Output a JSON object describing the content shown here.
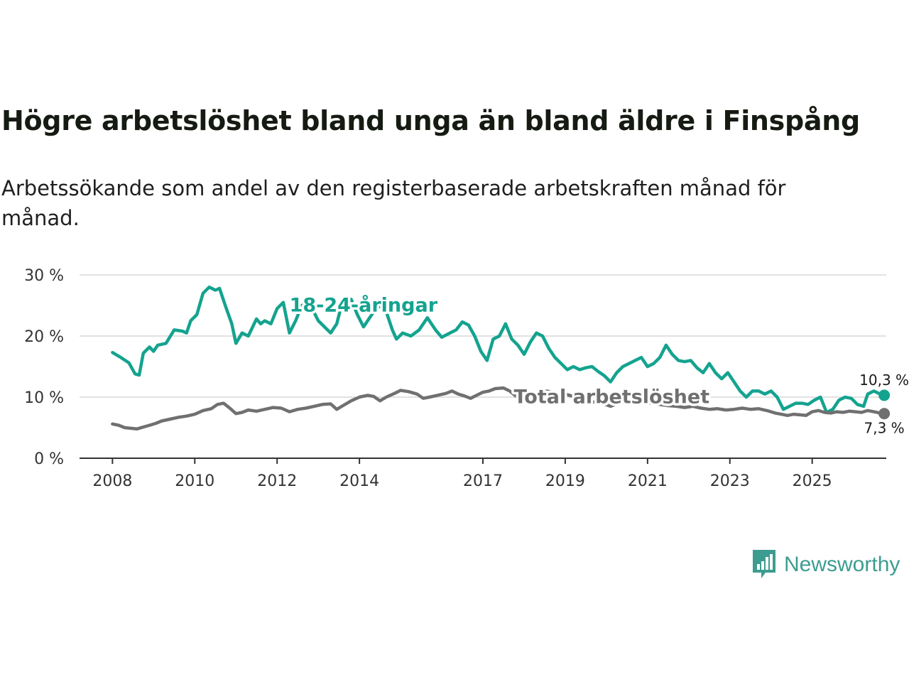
{
  "title": "Högre arbetslöshet bland unga än bland äldre i Finspång",
  "subtitle": "Arbetssökande som andel av den registerbaserade arbetskraften månad för månad.",
  "logo_text": "Newsworthy",
  "colors": {
    "youth": "#14a38f",
    "total": "#707070",
    "grid": "#d9d9d9",
    "axis": "#333333"
  },
  "chart_data": {
    "type": "line",
    "x_ticks": [
      {
        "label": "2008",
        "value": 2008.0
      },
      {
        "label": "2010",
        "value": 2010.0
      },
      {
        "label": "2012",
        "value": 2012.0
      },
      {
        "label": "2014",
        "value": 2014.0
      },
      {
        "label": "2017",
        "value": 2017.0
      },
      {
        "label": "2019",
        "value": 2019.0
      },
      {
        "label": "2021",
        "value": 2021.0
      },
      {
        "label": "2023",
        "value": 2023.0
      },
      {
        "label": "2025",
        "value": 2025.0
      }
    ],
    "y_ticks": [
      {
        "label": "0 %",
        "value": 0
      },
      {
        "label": "10 %",
        "value": 10
      },
      {
        "label": "20 %",
        "value": 20
      },
      {
        "label": "30 %",
        "value": 30
      }
    ],
    "xlim": [
      2007.2,
      2026.8
    ],
    "ylim": [
      0,
      30
    ],
    "series": [
      {
        "name": "18-24-åringar",
        "key": "youth",
        "end_label": "10,3 %",
        "points": [
          [
            2008.0,
            17.3
          ],
          [
            2008.2,
            16.5
          ],
          [
            2008.4,
            15.6
          ],
          [
            2008.55,
            13.8
          ],
          [
            2008.65,
            13.6
          ],
          [
            2008.75,
            17.2
          ],
          [
            2008.9,
            18.2
          ],
          [
            2009.0,
            17.5
          ],
          [
            2009.1,
            18.5
          ],
          [
            2009.3,
            18.8
          ],
          [
            2009.5,
            21.0
          ],
          [
            2009.7,
            20.8
          ],
          [
            2009.8,
            20.5
          ],
          [
            2009.9,
            22.5
          ],
          [
            2010.05,
            23.5
          ],
          [
            2010.2,
            27.0
          ],
          [
            2010.35,
            28.0
          ],
          [
            2010.5,
            27.5
          ],
          [
            2010.6,
            27.8
          ],
          [
            2010.75,
            24.8
          ],
          [
            2010.9,
            22.0
          ],
          [
            2011.0,
            18.8
          ],
          [
            2011.15,
            20.5
          ],
          [
            2011.3,
            20.0
          ],
          [
            2011.5,
            22.8
          ],
          [
            2011.6,
            22.0
          ],
          [
            2011.7,
            22.5
          ],
          [
            2011.85,
            22.0
          ],
          [
            2012.0,
            24.5
          ],
          [
            2012.15,
            25.5
          ],
          [
            2012.3,
            20.5
          ],
          [
            2012.45,
            22.5
          ],
          [
            2012.6,
            25.0
          ],
          [
            2012.75,
            25.5
          ],
          [
            2012.85,
            24.5
          ],
          [
            2013.0,
            22.5
          ],
          [
            2013.15,
            21.5
          ],
          [
            2013.3,
            20.5
          ],
          [
            2013.45,
            22.0
          ],
          [
            2013.6,
            26.0
          ],
          [
            2013.8,
            26.0
          ],
          [
            2013.95,
            23.5
          ],
          [
            2014.1,
            21.5
          ],
          [
            2014.3,
            23.5
          ],
          [
            2014.5,
            25.0
          ],
          [
            2014.65,
            24.0
          ],
          [
            2014.8,
            21.0
          ],
          [
            2014.9,
            19.5
          ],
          [
            2015.05,
            20.5
          ],
          [
            2015.25,
            20.0
          ],
          [
            2015.45,
            21.0
          ],
          [
            2015.65,
            23.0
          ],
          [
            2015.85,
            21.0
          ],
          [
            2016.0,
            19.8
          ],
          [
            2016.2,
            20.5
          ],
          [
            2016.35,
            21.0
          ],
          [
            2016.5,
            22.3
          ],
          [
            2016.65,
            21.8
          ],
          [
            2016.8,
            20.0
          ],
          [
            2016.95,
            17.5
          ],
          [
            2017.1,
            16.0
          ],
          [
            2017.25,
            19.5
          ],
          [
            2017.4,
            20.0
          ],
          [
            2017.55,
            22.0
          ],
          [
            2017.7,
            19.5
          ],
          [
            2017.85,
            18.5
          ],
          [
            2018.0,
            17.0
          ],
          [
            2018.15,
            19.0
          ],
          [
            2018.3,
            20.5
          ],
          [
            2018.45,
            20.0
          ],
          [
            2018.6,
            18.0
          ],
          [
            2018.75,
            16.5
          ],
          [
            2018.9,
            15.5
          ],
          [
            2019.05,
            14.5
          ],
          [
            2019.2,
            15.0
          ],
          [
            2019.35,
            14.5
          ],
          [
            2019.5,
            14.8
          ],
          [
            2019.65,
            15.0
          ],
          [
            2019.8,
            14.2
          ],
          [
            2019.95,
            13.5
          ],
          [
            2020.1,
            12.5
          ],
          [
            2020.25,
            14.0
          ],
          [
            2020.4,
            15.0
          ],
          [
            2020.55,
            15.5
          ],
          [
            2020.7,
            16.0
          ],
          [
            2020.85,
            16.5
          ],
          [
            2021.0,
            15.0
          ],
          [
            2021.15,
            15.5
          ],
          [
            2021.3,
            16.5
          ],
          [
            2021.45,
            18.5
          ],
          [
            2021.6,
            17.0
          ],
          [
            2021.75,
            16.0
          ],
          [
            2021.9,
            15.8
          ],
          [
            2022.05,
            16.0
          ],
          [
            2022.2,
            14.8
          ],
          [
            2022.35,
            14.0
          ],
          [
            2022.5,
            15.5
          ],
          [
            2022.65,
            14.0
          ],
          [
            2022.8,
            13.0
          ],
          [
            2022.95,
            14.0
          ],
          [
            2023.1,
            12.5
          ],
          [
            2023.25,
            11.0
          ],
          [
            2023.4,
            10.0
          ],
          [
            2023.55,
            11.0
          ],
          [
            2023.7,
            11.0
          ],
          [
            2023.85,
            10.5
          ],
          [
            2024.0,
            11.0
          ],
          [
            2024.15,
            10.0
          ],
          [
            2024.3,
            8.0
          ],
          [
            2024.45,
            8.5
          ],
          [
            2024.6,
            9.0
          ],
          [
            2024.75,
            9.0
          ],
          [
            2024.9,
            8.8
          ],
          [
            2025.05,
            9.5
          ],
          [
            2025.2,
            10.0
          ],
          [
            2025.35,
            7.5
          ],
          [
            2025.5,
            8.0
          ],
          [
            2025.65,
            9.5
          ],
          [
            2025.8,
            10.0
          ],
          [
            2025.95,
            9.8
          ],
          [
            2026.1,
            8.8
          ],
          [
            2026.25,
            8.5
          ],
          [
            2026.35,
            10.5
          ],
          [
            2026.5,
            11.0
          ],
          [
            2026.65,
            10.5
          ],
          [
            2026.75,
            10.3
          ]
        ]
      },
      {
        "name": "Total arbetslöshet",
        "key": "total",
        "end_label": "7,3 %",
        "points": [
          [
            2008.0,
            5.6
          ],
          [
            2008.15,
            5.4
          ],
          [
            2008.3,
            5.0
          ],
          [
            2008.45,
            4.9
          ],
          [
            2008.6,
            4.8
          ],
          [
            2008.75,
            5.1
          ],
          [
            2008.9,
            5.4
          ],
          [
            2009.05,
            5.7
          ],
          [
            2009.2,
            6.1
          ],
          [
            2009.4,
            6.4
          ],
          [
            2009.6,
            6.7
          ],
          [
            2009.8,
            6.9
          ],
          [
            2010.0,
            7.2
          ],
          [
            2010.2,
            7.8
          ],
          [
            2010.4,
            8.1
          ],
          [
            2010.55,
            8.8
          ],
          [
            2010.7,
            9.0
          ],
          [
            2010.85,
            8.2
          ],
          [
            2011.0,
            7.3
          ],
          [
            2011.15,
            7.5
          ],
          [
            2011.3,
            7.9
          ],
          [
            2011.5,
            7.7
          ],
          [
            2011.7,
            8.0
          ],
          [
            2011.9,
            8.3
          ],
          [
            2012.1,
            8.2
          ],
          [
            2012.3,
            7.6
          ],
          [
            2012.5,
            8.0
          ],
          [
            2012.7,
            8.2
          ],
          [
            2012.9,
            8.5
          ],
          [
            2013.1,
            8.8
          ],
          [
            2013.3,
            8.9
          ],
          [
            2013.45,
            8.0
          ],
          [
            2013.6,
            8.6
          ],
          [
            2013.8,
            9.4
          ],
          [
            2014.0,
            10.0
          ],
          [
            2014.2,
            10.3
          ],
          [
            2014.35,
            10.1
          ],
          [
            2014.5,
            9.4
          ],
          [
            2014.65,
            10.0
          ],
          [
            2014.85,
            10.6
          ],
          [
            2015.0,
            11.1
          ],
          [
            2015.2,
            10.9
          ],
          [
            2015.4,
            10.5
          ],
          [
            2015.55,
            9.8
          ],
          [
            2015.7,
            10.0
          ],
          [
            2015.9,
            10.3
          ],
          [
            2016.1,
            10.6
          ],
          [
            2016.25,
            11.0
          ],
          [
            2016.4,
            10.5
          ],
          [
            2016.55,
            10.2
          ],
          [
            2016.7,
            9.8
          ],
          [
            2016.85,
            10.3
          ],
          [
            2017.0,
            10.8
          ],
          [
            2017.15,
            11.0
          ],
          [
            2017.3,
            11.4
          ],
          [
            2017.5,
            11.5
          ],
          [
            2017.65,
            11.0
          ],
          [
            2017.8,
            10.2
          ],
          [
            2017.95,
            9.7
          ],
          [
            2018.1,
            10.2
          ],
          [
            2018.25,
            10.5
          ],
          [
            2018.4,
            10.5
          ],
          [
            2018.55,
            11.0
          ],
          [
            2018.7,
            10.8
          ],
          [
            2018.85,
            10.2
          ],
          [
            2019.0,
            10.5
          ],
          [
            2019.15,
            10.2
          ],
          [
            2019.3,
            10.0
          ],
          [
            2019.5,
            9.5
          ],
          [
            2019.7,
            9.2
          ],
          [
            2019.9,
            9.0
          ],
          [
            2020.1,
            8.5
          ],
          [
            2020.3,
            9.0
          ],
          [
            2020.5,
            9.2
          ],
          [
            2020.7,
            9.0
          ],
          [
            2020.9,
            9.2
          ],
          [
            2021.1,
            9.0
          ],
          [
            2021.3,
            8.8
          ],
          [
            2021.5,
            8.6
          ],
          [
            2021.7,
            8.5
          ],
          [
            2021.9,
            8.3
          ],
          [
            2022.1,
            8.5
          ],
          [
            2022.3,
            8.2
          ],
          [
            2022.5,
            8.0
          ],
          [
            2022.7,
            8.1
          ],
          [
            2022.9,
            7.9
          ],
          [
            2023.1,
            8.0
          ],
          [
            2023.3,
            8.2
          ],
          [
            2023.5,
            8.0
          ],
          [
            2023.7,
            8.1
          ],
          [
            2023.9,
            7.8
          ],
          [
            2024.1,
            7.4
          ],
          [
            2024.25,
            7.2
          ],
          [
            2024.4,
            7.0
          ],
          [
            2024.55,
            7.2
          ],
          [
            2024.7,
            7.1
          ],
          [
            2024.85,
            7.0
          ],
          [
            2025.0,
            7.6
          ],
          [
            2025.15,
            7.8
          ],
          [
            2025.3,
            7.5
          ],
          [
            2025.45,
            7.4
          ],
          [
            2025.6,
            7.6
          ],
          [
            2025.75,
            7.5
          ],
          [
            2025.9,
            7.7
          ],
          [
            2026.05,
            7.6
          ],
          [
            2026.2,
            7.5
          ],
          [
            2026.35,
            7.8
          ],
          [
            2026.5,
            7.6
          ],
          [
            2026.65,
            7.4
          ],
          [
            2026.75,
            7.3
          ]
        ]
      }
    ]
  }
}
